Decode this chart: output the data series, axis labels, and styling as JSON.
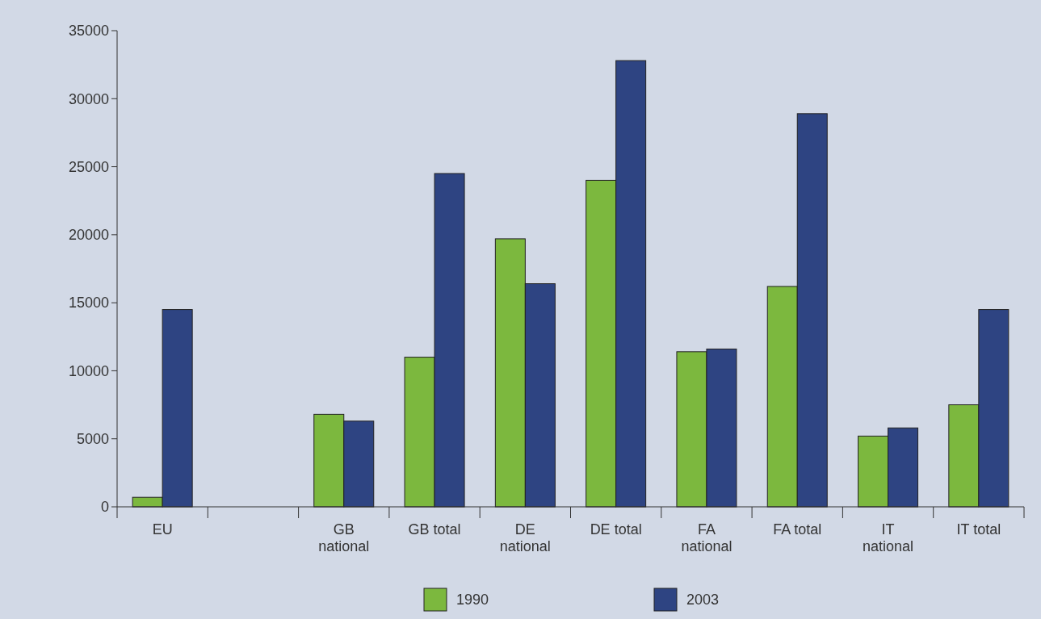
{
  "chart_data": {
    "type": "bar",
    "categories": [
      "EU",
      null,
      "GB national",
      "GB total",
      "DE national",
      "DE total",
      "FA national",
      "FA total",
      "IT national",
      "IT total"
    ],
    "series": [
      {
        "name": "1990",
        "color": "#7cb83e",
        "values": [
          700,
          null,
          6800,
          11000,
          19700,
          24000,
          11400,
          16200,
          5200,
          7500
        ]
      },
      {
        "name": "2003",
        "color": "#2e4482",
        "values": [
          14500,
          null,
          6300,
          24500,
          16400,
          32800,
          11600,
          28900,
          5800,
          14500
        ]
      }
    ],
    "ylim": [
      0,
      35000
    ],
    "yticks": [
      0,
      5000,
      10000,
      15000,
      20000,
      25000,
      30000,
      35000
    ],
    "legend": "bottom"
  }
}
